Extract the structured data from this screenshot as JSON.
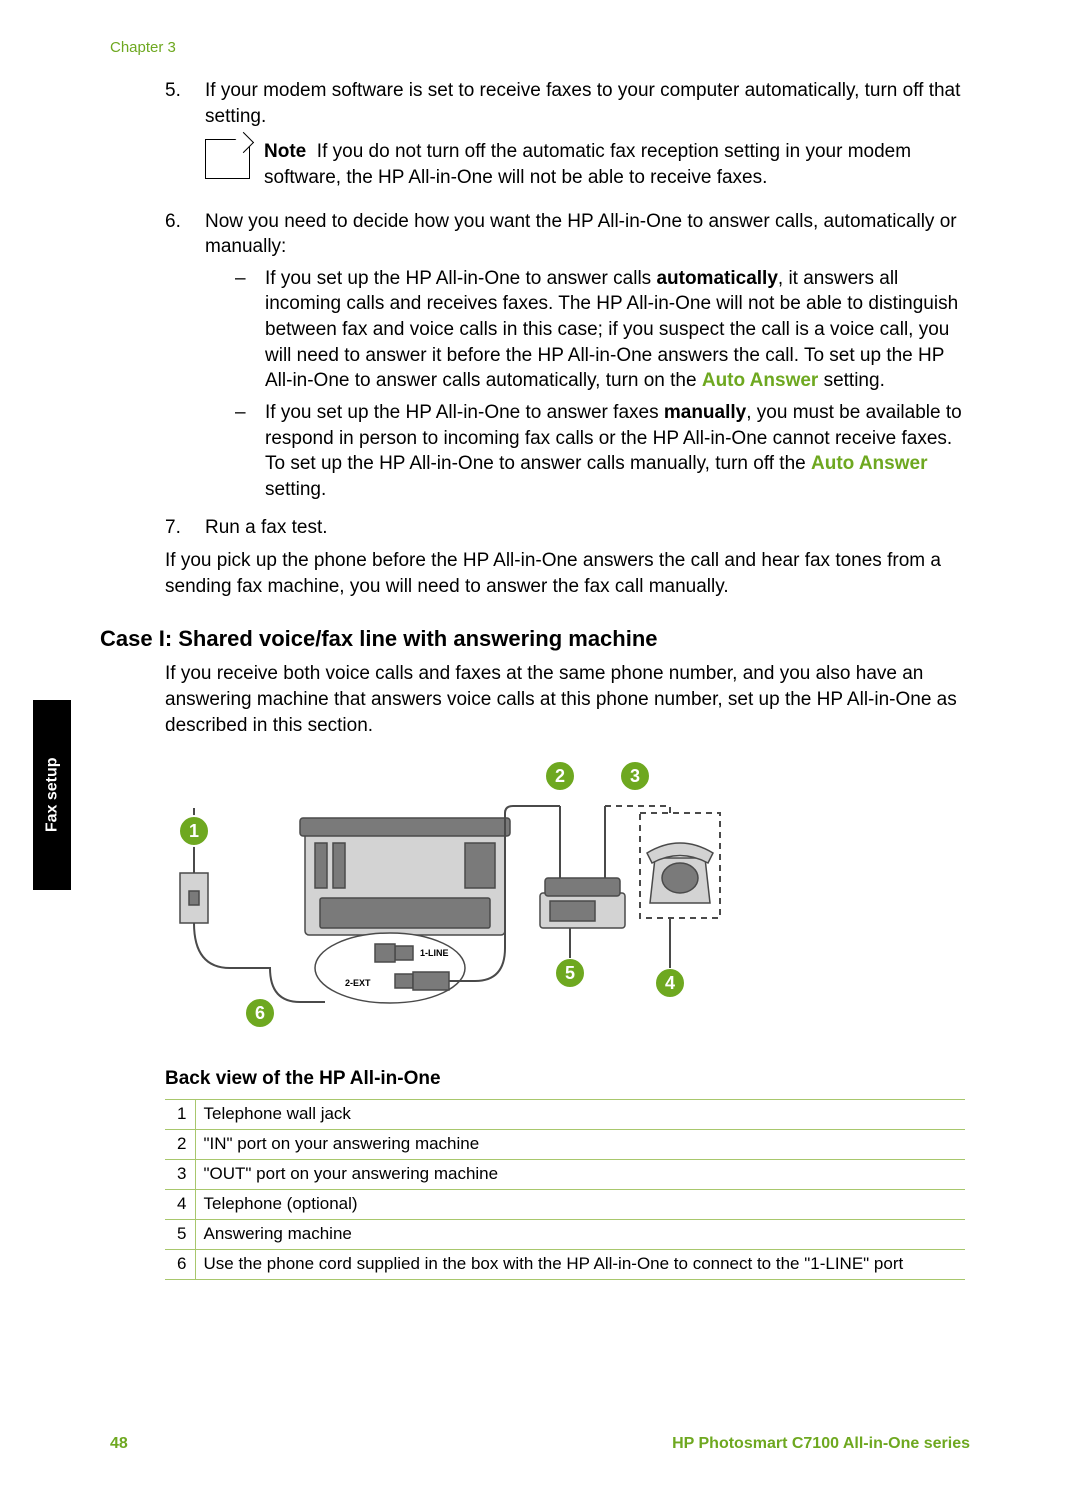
{
  "chapter_label": "Chapter 3",
  "steps": {
    "s5": {
      "num": "5.",
      "text": "If your modem software is set to receive faxes to your computer automatically, turn off that setting."
    },
    "note": {
      "label": "Note",
      "text": "If you do not turn off the automatic fax reception setting in your modem software, the HP All-in-One will not be able to receive faxes."
    },
    "s6": {
      "num": "6.",
      "intro": "Now you need to decide how you want the HP All-in-One to answer calls, automatically or manually:",
      "bullet_a": {
        "pre": "If you set up the HP All-in-One to answer calls ",
        "bold1": "automatically",
        "mid": ", it answers all incoming calls and receives faxes. The HP All-in-One will not be able to distinguish between fax and voice calls in this case; if you suspect the call is a voice call, you will need to answer it before the HP All-in-One answers the call. To set up the HP All-in-One to answer calls automatically, turn on the ",
        "green": "Auto Answer",
        "post": " setting."
      },
      "bullet_b": {
        "pre": "If you set up the HP All-in-One to answer faxes ",
        "bold1": "manually",
        "mid": ", you must be available to respond in person to incoming fax calls or the HP All-in-One cannot receive faxes. To set up the HP All-in-One to answer calls manually, turn off the ",
        "green": "Auto Answer",
        "post": " setting."
      }
    },
    "s7": {
      "num": "7.",
      "text": "Run a fax test."
    },
    "closing": "If you pick up the phone before the HP All-in-One answers the call and hear fax tones from a sending fax machine, you will need to answer the fax call manually."
  },
  "section_heading": "Case I: Shared voice/fax line with answering machine",
  "section_intro": "If you receive both voice calls and faxes at the same phone number, and you also have an answering machine that answers voice calls at this phone number, set up the HP All-in-One as described in this section.",
  "diagram": {
    "callouts": {
      "c1": "1",
      "c2": "2",
      "c3": "3",
      "c4": "4",
      "c5": "5",
      "c6": "6"
    },
    "port_labels": {
      "line": "1-LINE",
      "ext": "2-EXT"
    },
    "colors": {
      "callout_fill": "#6ea820",
      "callout_stroke": "#ffffff",
      "device_fill": "#d3d3d3",
      "device_dark": "#7a7a7a",
      "stroke": "#4a4a4a"
    }
  },
  "diagram_caption": "Back view of the HP All-in-One",
  "legend": {
    "rows": [
      {
        "n": "1",
        "t": "Telephone wall jack"
      },
      {
        "n": "2",
        "t": "\"IN\" port on your answering machine"
      },
      {
        "n": "3",
        "t": "\"OUT\" port on your answering machine"
      },
      {
        "n": "4",
        "t": "Telephone (optional)"
      },
      {
        "n": "5",
        "t": "Answering machine"
      },
      {
        "n": "6",
        "t": "Use the phone cord supplied in the box with the HP All-in-One to connect to the \"1-LINE\" port"
      }
    ]
  },
  "side_tab": "Fax setup",
  "footer": {
    "page": "48",
    "product": "HP Photosmart C7100 All-in-One series"
  }
}
